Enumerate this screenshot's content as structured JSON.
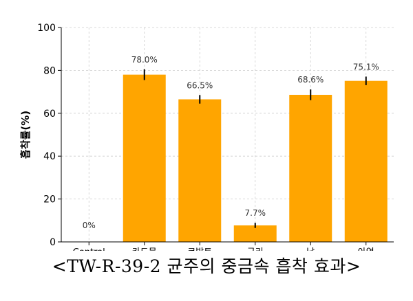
{
  "chart_data": {
    "type": "bar",
    "categories": [
      "Control",
      "카드뮴",
      "코발트",
      "구리",
      "납",
      "아연"
    ],
    "values": [
      0,
      78.0,
      66.5,
      7.7,
      68.6,
      75.1
    ],
    "value_labels": [
      "0%",
      "78.0%",
      "66.5%",
      "7.7%",
      "68.6%",
      "75.1%"
    ],
    "error": [
      0,
      2.5,
      2.0,
      1.2,
      2.5,
      2.0
    ],
    "ylabel": "흡착률(%)",
    "xlabel": "",
    "ylim": [
      0,
      100
    ],
    "yticks": [
      "0",
      "20",
      "40",
      "60",
      "80",
      "100"
    ],
    "grid": true,
    "bar_color": "#FFA500",
    "error_color": "#000000"
  },
  "caption": "<TW-R-39-2 균주의 중금속 흡착 효과>"
}
